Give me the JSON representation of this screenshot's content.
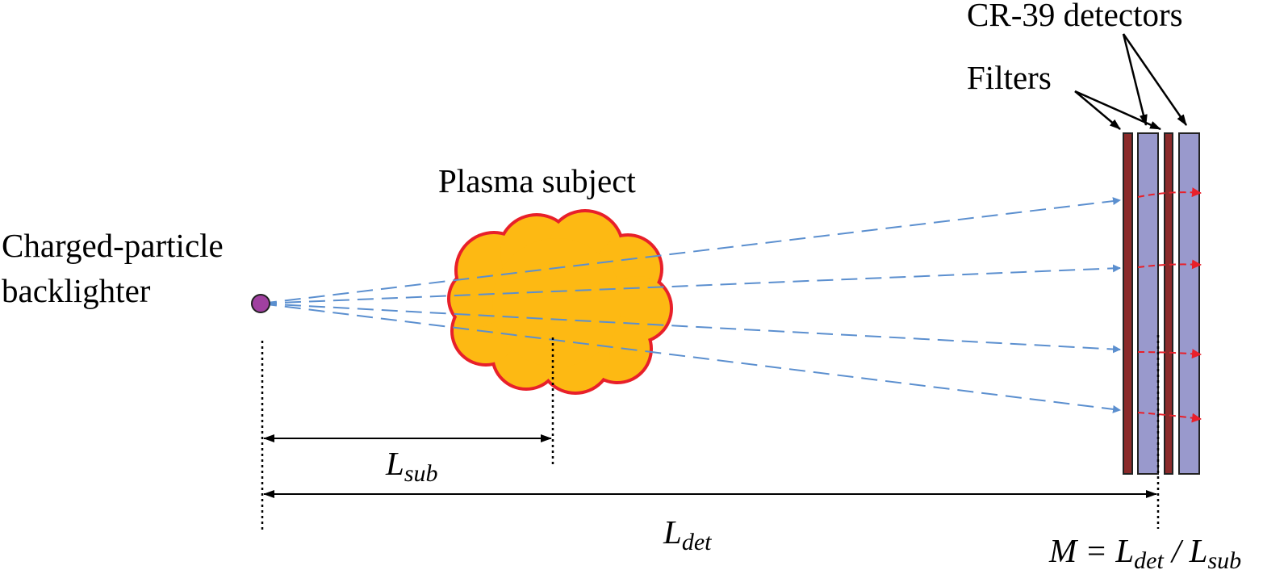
{
  "labels": {
    "backlighter": [
      "Charged-particle",
      "backlighter"
    ],
    "subject": "Plasma subject",
    "detectors": "CR-39 detectors",
    "filters": "Filters",
    "l_sub": {
      "main": "L",
      "sub": "sub"
    },
    "l_det": {
      "main": "L",
      "sub": "det"
    },
    "magnification": {
      "lead": "M = L",
      "sub1": "det",
      "mid": " / L",
      "sub2": "sub"
    }
  }
}
